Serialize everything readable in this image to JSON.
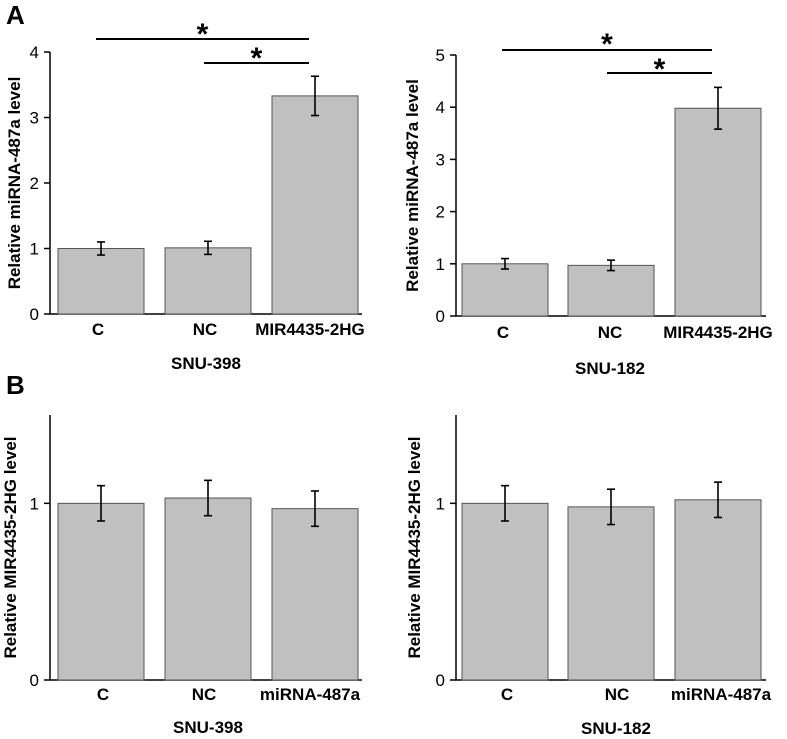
{
  "panels": [
    {
      "letter": "A"
    },
    {
      "letter": "B"
    }
  ],
  "chart_data": [
    {
      "type": "bar",
      "panel": "A",
      "title": "",
      "xlabel": "SNU-398",
      "ylabel": "Relative miRNA-487a level",
      "categories": [
        "C",
        "NC",
        "MIR4435-2HG"
      ],
      "values": [
        1.0,
        1.01,
        3.33
      ],
      "errors": [
        0.1,
        0.1,
        0.3
      ],
      "ylim": [
        0,
        4
      ],
      "yticks": [
        0,
        1,
        2,
        3,
        4
      ],
      "significance": [
        {
          "from": 0,
          "to": 2,
          "label": "*"
        },
        {
          "from": 1,
          "to": 2,
          "label": "*"
        }
      ]
    },
    {
      "type": "bar",
      "panel": "A",
      "title": "",
      "xlabel": "SNU-182",
      "ylabel": "Relative miRNA-487a level",
      "categories": [
        "C",
        "NC",
        "MIR4435-2HG"
      ],
      "values": [
        1.0,
        0.97,
        3.98
      ],
      "errors": [
        0.1,
        0.1,
        0.4
      ],
      "ylim": [
        0,
        5
      ],
      "yticks": [
        0,
        1,
        2,
        3,
        4,
        5
      ],
      "significance": [
        {
          "from": 0,
          "to": 2,
          "label": "*"
        },
        {
          "from": 1,
          "to": 2,
          "label": "*"
        }
      ]
    },
    {
      "type": "bar",
      "panel": "B",
      "title": "",
      "xlabel": "SNU-398",
      "ylabel": "Relative MIR4435-2HG level",
      "categories": [
        "C",
        "NC",
        "miRNA-487a"
      ],
      "values": [
        1.0,
        1.03,
        0.97
      ],
      "errors": [
        0.1,
        0.1,
        0.1
      ],
      "ylim": [
        0,
        1.5
      ],
      "yticks": [
        0,
        1
      ],
      "significance": []
    },
    {
      "type": "bar",
      "panel": "B",
      "title": "",
      "xlabel": "SNU-182",
      "ylabel": "Relative MIR4435-2HG level",
      "categories": [
        "C",
        "NC",
        "miRNA-487a"
      ],
      "values": [
        1.0,
        0.98,
        1.02
      ],
      "errors": [
        0.1,
        0.1,
        0.1
      ],
      "ylim": [
        0,
        1.5
      ],
      "yticks": [
        0,
        1
      ],
      "significance": []
    }
  ]
}
